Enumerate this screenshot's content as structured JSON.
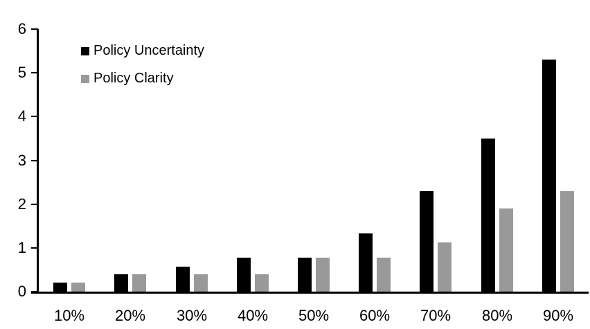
{
  "chart_data": {
    "type": "bar",
    "title": "",
    "xlabel": "",
    "ylabel": "",
    "categories": [
      "10%",
      "20%",
      "30%",
      "40%",
      "50%",
      "60%",
      "70%",
      "80%",
      "90%"
    ],
    "series": [
      {
        "name": "Policy Uncertainty",
        "color": "#000000",
        "values": [
          0.2,
          0.4,
          0.57,
          0.77,
          0.78,
          1.33,
          2.3,
          3.5,
          5.3
        ]
      },
      {
        "name": "Policy Clarity",
        "color": "#999999",
        "values": [
          0.2,
          0.4,
          0.4,
          0.4,
          0.77,
          0.77,
          1.13,
          1.9,
          2.3
        ]
      }
    ],
    "ylim": [
      0,
      6
    ],
    "yticks": [
      0,
      1,
      2,
      3,
      4,
      5,
      6
    ],
    "grid": false,
    "legend_position": "upper-left-inside",
    "axis_color": "#000000",
    "background_color": "#ffffff"
  }
}
